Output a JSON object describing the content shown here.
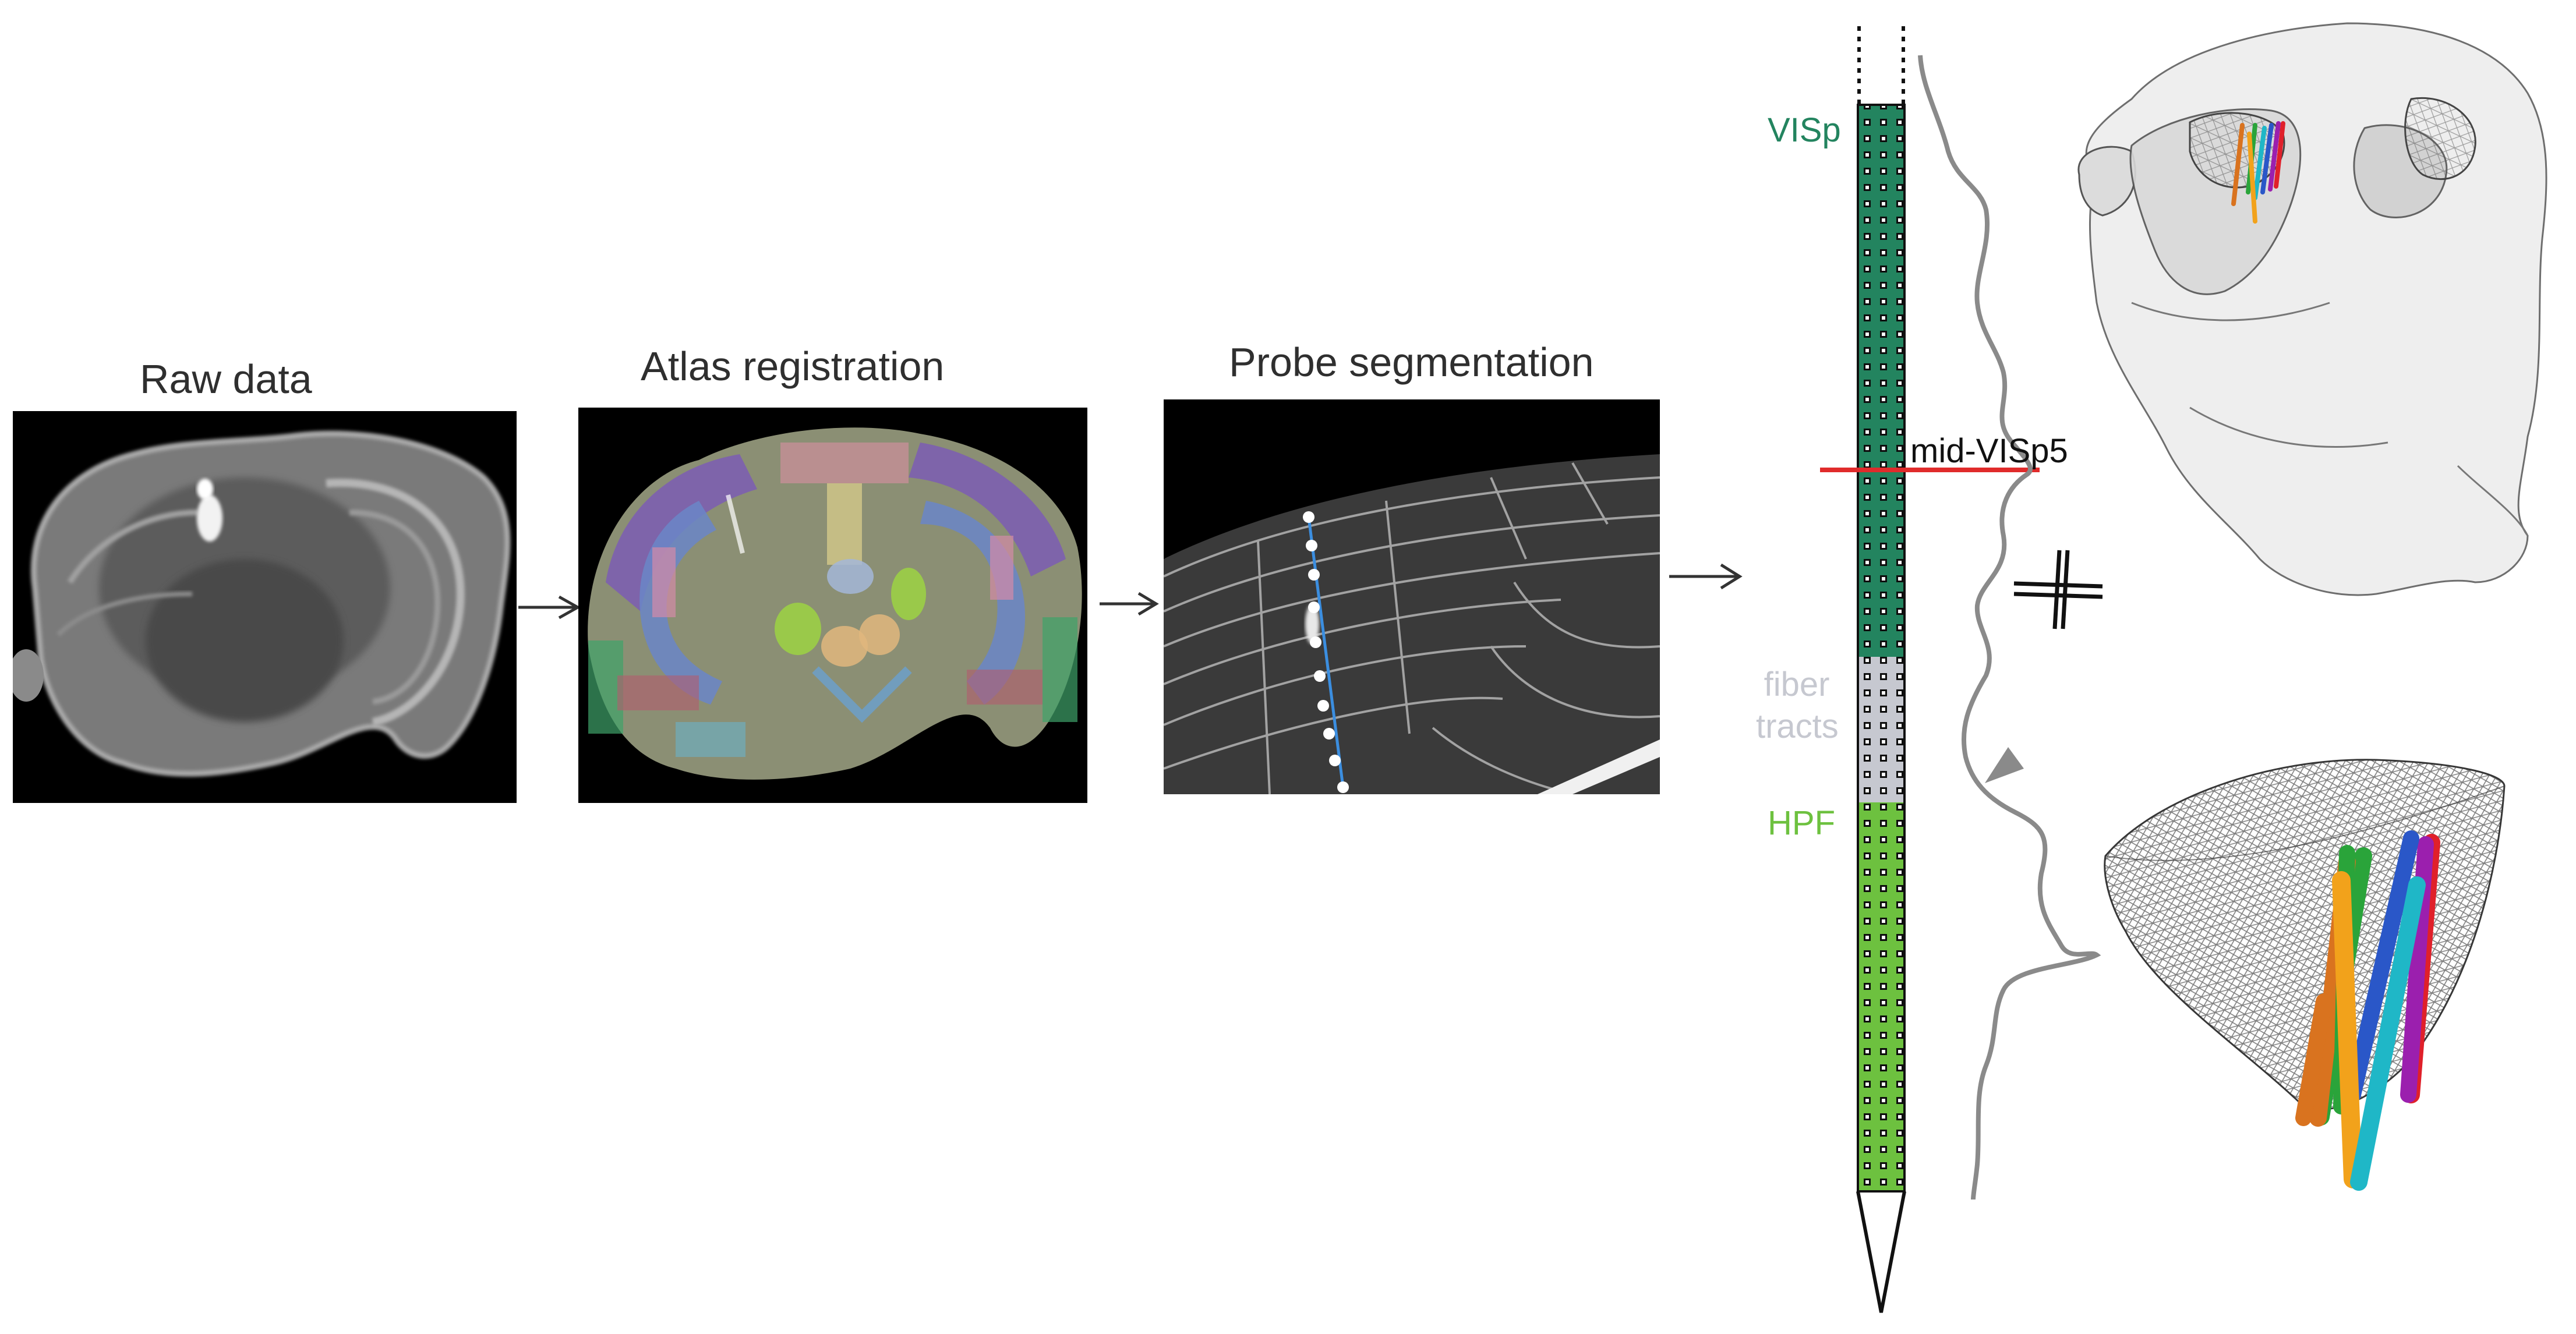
{
  "panels": {
    "raw_data": {
      "title": "Raw data"
    },
    "atlas_registration": {
      "title": "Atlas registration"
    },
    "probe_segmentation": {
      "title": "Probe segmentation"
    }
  },
  "probe": {
    "regions": [
      {
        "label": "VISp",
        "color": "#23845f"
      },
      {
        "label": "fiber tracts",
        "color": "#c6c8d0"
      },
      {
        "label": "HPF",
        "color": "#6dc13f"
      }
    ],
    "marker_label": "mid-VISp5",
    "marker_color": "#e02b2b"
  },
  "colors": {
    "arrow": "#333333",
    "profile": "#8a8a8a",
    "segmentation_line": "#3b8ee0",
    "probe_tracks": [
      "#e0202a",
      "#9b1fae",
      "#2a57c8",
      "#1fb7c7",
      "#2aa43a",
      "#f2a21b",
      "#d9731f"
    ]
  }
}
